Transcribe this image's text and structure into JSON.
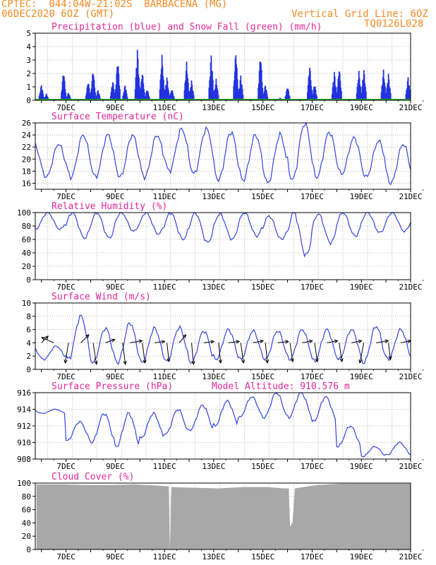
{
  "header": {
    "line1": "CPTEC:  044:04W-21:02S  BARBACENA (MG)",
    "line2": "06DEC2020 6OZ (GMT)",
    "grid_note": "Vertical Grid Line: 6OZ",
    "code": "TQ0126L028"
  },
  "colors": {
    "header": "#f08a24",
    "title": "#e0289a",
    "line": "#3344dd",
    "precip": "#2233dd",
    "snow": "#22aa22",
    "cloud": "#a8a8a8",
    "grid": "#888888"
  },
  "x_days": [
    "7DEC",
    "9DEC",
    "11DEC",
    "13DEC",
    "15DEC",
    "17DEC",
    "19DEC",
    "21DEC"
  ],
  "chart_data": [
    {
      "id": "precip",
      "type": "bar",
      "title": "Precipitation (blue) and Snow Fall (green) (mm/h)",
      "ylim": [
        0,
        5
      ],
      "yticks": [
        "0",
        "1",
        "2",
        "3",
        "4",
        "5"
      ],
      "series": [
        {
          "name": "Precipitation",
          "values": [
            {
              "x": 6.0,
              "y": 1.2
            },
            {
              "x": 6.2,
              "y": 0.5
            },
            {
              "x": 6.9,
              "y": 2.3
            },
            {
              "x": 7.1,
              "y": 0.6
            },
            {
              "x": 7.9,
              "y": 1.5
            },
            {
              "x": 8.1,
              "y": 2.4
            },
            {
              "x": 8.3,
              "y": 0.8
            },
            {
              "x": 8.9,
              "y": 1.5
            },
            {
              "x": 9.1,
              "y": 3.2
            },
            {
              "x": 9.4,
              "y": 1.2
            },
            {
              "x": 9.9,
              "y": 3.9
            },
            {
              "x": 10.1,
              "y": 2.2
            },
            {
              "x": 10.3,
              "y": 0.9
            },
            {
              "x": 10.9,
              "y": 3.4
            },
            {
              "x": 11.1,
              "y": 1.8
            },
            {
              "x": 11.3,
              "y": 0.9
            },
            {
              "x": 11.9,
              "y": 2.9
            },
            {
              "x": 12.1,
              "y": 1.5
            },
            {
              "x": 12.9,
              "y": 3.5
            },
            {
              "x": 13.1,
              "y": 1.6
            },
            {
              "x": 13.9,
              "y": 3.8
            },
            {
              "x": 14.1,
              "y": 1.9
            },
            {
              "x": 14.9,
              "y": 3.6
            },
            {
              "x": 15.1,
              "y": 1.2
            },
            {
              "x": 15.7,
              "y": 0.2
            },
            {
              "x": 16.0,
              "y": 1.1
            },
            {
              "x": 16.9,
              "y": 2.7
            },
            {
              "x": 17.1,
              "y": 1.3
            },
            {
              "x": 17.9,
              "y": 2.2
            },
            {
              "x": 18.1,
              "y": 2.5
            },
            {
              "x": 18.9,
              "y": 2.2
            },
            {
              "x": 19.1,
              "y": 2.4
            },
            {
              "x": 19.9,
              "y": 2.3
            },
            {
              "x": 20.1,
              "y": 2.0
            },
            {
              "x": 20.9,
              "y": 1.8
            }
          ]
        },
        {
          "name": "Snow Fall",
          "values": []
        }
      ]
    },
    {
      "id": "temp",
      "type": "line",
      "title": "Surface Temperature (nC)",
      "ylim": [
        15,
        26
      ],
      "yticks": [
        "16",
        "18",
        "20",
        "22",
        "24",
        "26"
      ],
      "ytick_values": [
        16,
        18,
        20,
        22,
        24,
        26
      ],
      "min": [
        17,
        17,
        17,
        17,
        17,
        18,
        17.5,
        16.5,
        16.5,
        16,
        16.5,
        17,
        17.5,
        17,
        16
      ],
      "max": [
        22.5,
        24,
        24,
        24,
        24,
        25,
        25,
        24.5,
        24,
        24,
        26,
        24.5,
        23.5,
        23,
        22.5
      ]
    },
    {
      "id": "rh",
      "type": "line",
      "title": "Relative Humidity (%)",
      "ylim": [
        0,
        100
      ],
      "yticks": [
        "0",
        "20",
        "40",
        "60",
        "80",
        "100"
      ],
      "ytick_values": [
        0,
        20,
        40,
        60,
        80,
        100
      ],
      "min": [
        75,
        62,
        62,
        72,
        68,
        60,
        55,
        60,
        65,
        60,
        36,
        55,
        65,
        70,
        72
      ],
      "max": [
        100,
        100,
        100,
        100,
        100,
        100,
        100,
        98,
        100,
        95,
        100,
        98,
        100,
        100,
        100
      ]
    },
    {
      "id": "wind",
      "type": "line",
      "title": "Surface Wind (m/s)",
      "ylim": [
        0,
        10
      ],
      "yticks": [
        "0",
        "2",
        "4",
        "6",
        "8",
        "10"
      ],
      "ytick_values": [
        0,
        2,
        4,
        6,
        8,
        10
      ],
      "min": [
        1.5,
        1.5,
        1.0,
        1.0,
        1.0,
        1.2,
        1.0,
        1.5,
        1.5,
        1.5,
        1.5,
        1.2,
        1.5,
        1.0,
        1.5
      ],
      "max": [
        3.5,
        8.0,
        6.2,
        7.0,
        6.2,
        6.3,
        5.8,
        6.0,
        5.8,
        5.8,
        6.0,
        6.0,
        6.0,
        6.5,
        6.0
      ],
      "arrows": [
        {
          "x": 6.0,
          "u": 1.0,
          "v": 1.0
        },
        {
          "x": 6.5,
          "u": -1.8,
          "v": 0.8
        },
        {
          "x": 7.1,
          "u": -0.5,
          "v": -3.0
        },
        {
          "x": 7.6,
          "u": 1.2,
          "v": 1.2
        },
        {
          "x": 8.1,
          "u": 0.5,
          "v": -3.2
        },
        {
          "x": 8.6,
          "u": 1.4,
          "v": 0.5
        },
        {
          "x": 9.3,
          "u": 0.4,
          "v": -3.2
        },
        {
          "x": 9.6,
          "u": 1.8,
          "v": 0.3
        },
        {
          "x": 10.1,
          "u": 0.4,
          "v": -3.0
        },
        {
          "x": 10.6,
          "u": 1.5,
          "v": 0.2
        },
        {
          "x": 11.1,
          "u": 0.3,
          "v": -2.8
        },
        {
          "x": 11.6,
          "u": 1.0,
          "v": 1.2
        },
        {
          "x": 12.1,
          "u": 0.3,
          "v": -3.2
        },
        {
          "x": 12.6,
          "u": 1.5,
          "v": 0.2
        },
        {
          "x": 13.2,
          "u": 0.3,
          "v": -3.0
        },
        {
          "x": 13.6,
          "u": 1.6,
          "v": 0.2
        },
        {
          "x": 14.1,
          "u": 0.4,
          "v": -3.0
        },
        {
          "x": 14.6,
          "u": 1.5,
          "v": 0.3
        },
        {
          "x": 15.1,
          "u": 0.3,
          "v": -3.0
        },
        {
          "x": 15.6,
          "u": 1.6,
          "v": 0.2
        },
        {
          "x": 16.1,
          "u": 0.4,
          "v": -2.8
        },
        {
          "x": 16.6,
          "u": 1.5,
          "v": 0.3
        },
        {
          "x": 17.1,
          "u": 0.4,
          "v": -2.8
        },
        {
          "x": 17.6,
          "u": 1.6,
          "v": 0.3
        },
        {
          "x": 18.1,
          "u": 0.4,
          "v": -2.8
        },
        {
          "x": 18.6,
          "u": 1.5,
          "v": 0.3
        },
        {
          "x": 19.1,
          "u": -0.6,
          "v": -3.0
        },
        {
          "x": 19.6,
          "u": 1.8,
          "v": 0.3
        },
        {
          "x": 20.1,
          "u": 0.3,
          "v": -2.5
        },
        {
          "x": 20.6,
          "u": 1.5,
          "v": 0.3
        }
      ]
    },
    {
      "id": "pres",
      "type": "line",
      "title": "Surface Pressure (hPa)",
      "altitude": "Model Altitude: 910.576 m",
      "ylim": [
        908,
        916
      ],
      "yticks": [
        "908",
        "910",
        "912",
        "914",
        "916"
      ],
      "ytick_values": [
        908,
        910,
        912,
        914,
        916
      ],
      "min": [
        913.5,
        910.2,
        910,
        909.5,
        910.5,
        911,
        911.5,
        912,
        913,
        913,
        913,
        912.5,
        909.5,
        908.3,
        908.5
      ],
      "max": [
        914,
        912.5,
        913.5,
        913.5,
        913.5,
        914,
        914.5,
        915,
        915.5,
        916,
        916,
        915.5,
        912,
        909.5,
        910
      ]
    },
    {
      "id": "cloud",
      "type": "area",
      "title": "Cloud Cover (%)",
      "ylim": [
        0,
        100
      ],
      "yticks": [
        "0",
        "20",
        "40",
        "60",
        "80",
        "100"
      ],
      "ytick_values": [
        0,
        20,
        40,
        60,
        80,
        100
      ],
      "values": [
        {
          "x": 5.8,
          "y": 98
        },
        {
          "x": 6.8,
          "y": 98
        },
        {
          "x": 7.8,
          "y": 97
        },
        {
          "x": 8.8,
          "y": 97
        },
        {
          "x": 9.8,
          "y": 98
        },
        {
          "x": 10.8,
          "y": 96
        },
        {
          "x": 11.18,
          "y": 95
        },
        {
          "x": 11.22,
          "y": 0
        },
        {
          "x": 11.28,
          "y": 94
        },
        {
          "x": 12.2,
          "y": 93
        },
        {
          "x": 13.2,
          "y": 92
        },
        {
          "x": 14.2,
          "y": 94
        },
        {
          "x": 15.2,
          "y": 94
        },
        {
          "x": 15.8,
          "y": 92
        },
        {
          "x": 16.05,
          "y": 92
        },
        {
          "x": 16.1,
          "y": 35
        },
        {
          "x": 16.2,
          "y": 40
        },
        {
          "x": 16.3,
          "y": 92
        },
        {
          "x": 17.2,
          "y": 97
        },
        {
          "x": 18.2,
          "y": 99
        },
        {
          "x": 19.2,
          "y": 99
        },
        {
          "x": 20.2,
          "y": 99
        },
        {
          "x": 21.0,
          "y": 99
        }
      ]
    }
  ]
}
